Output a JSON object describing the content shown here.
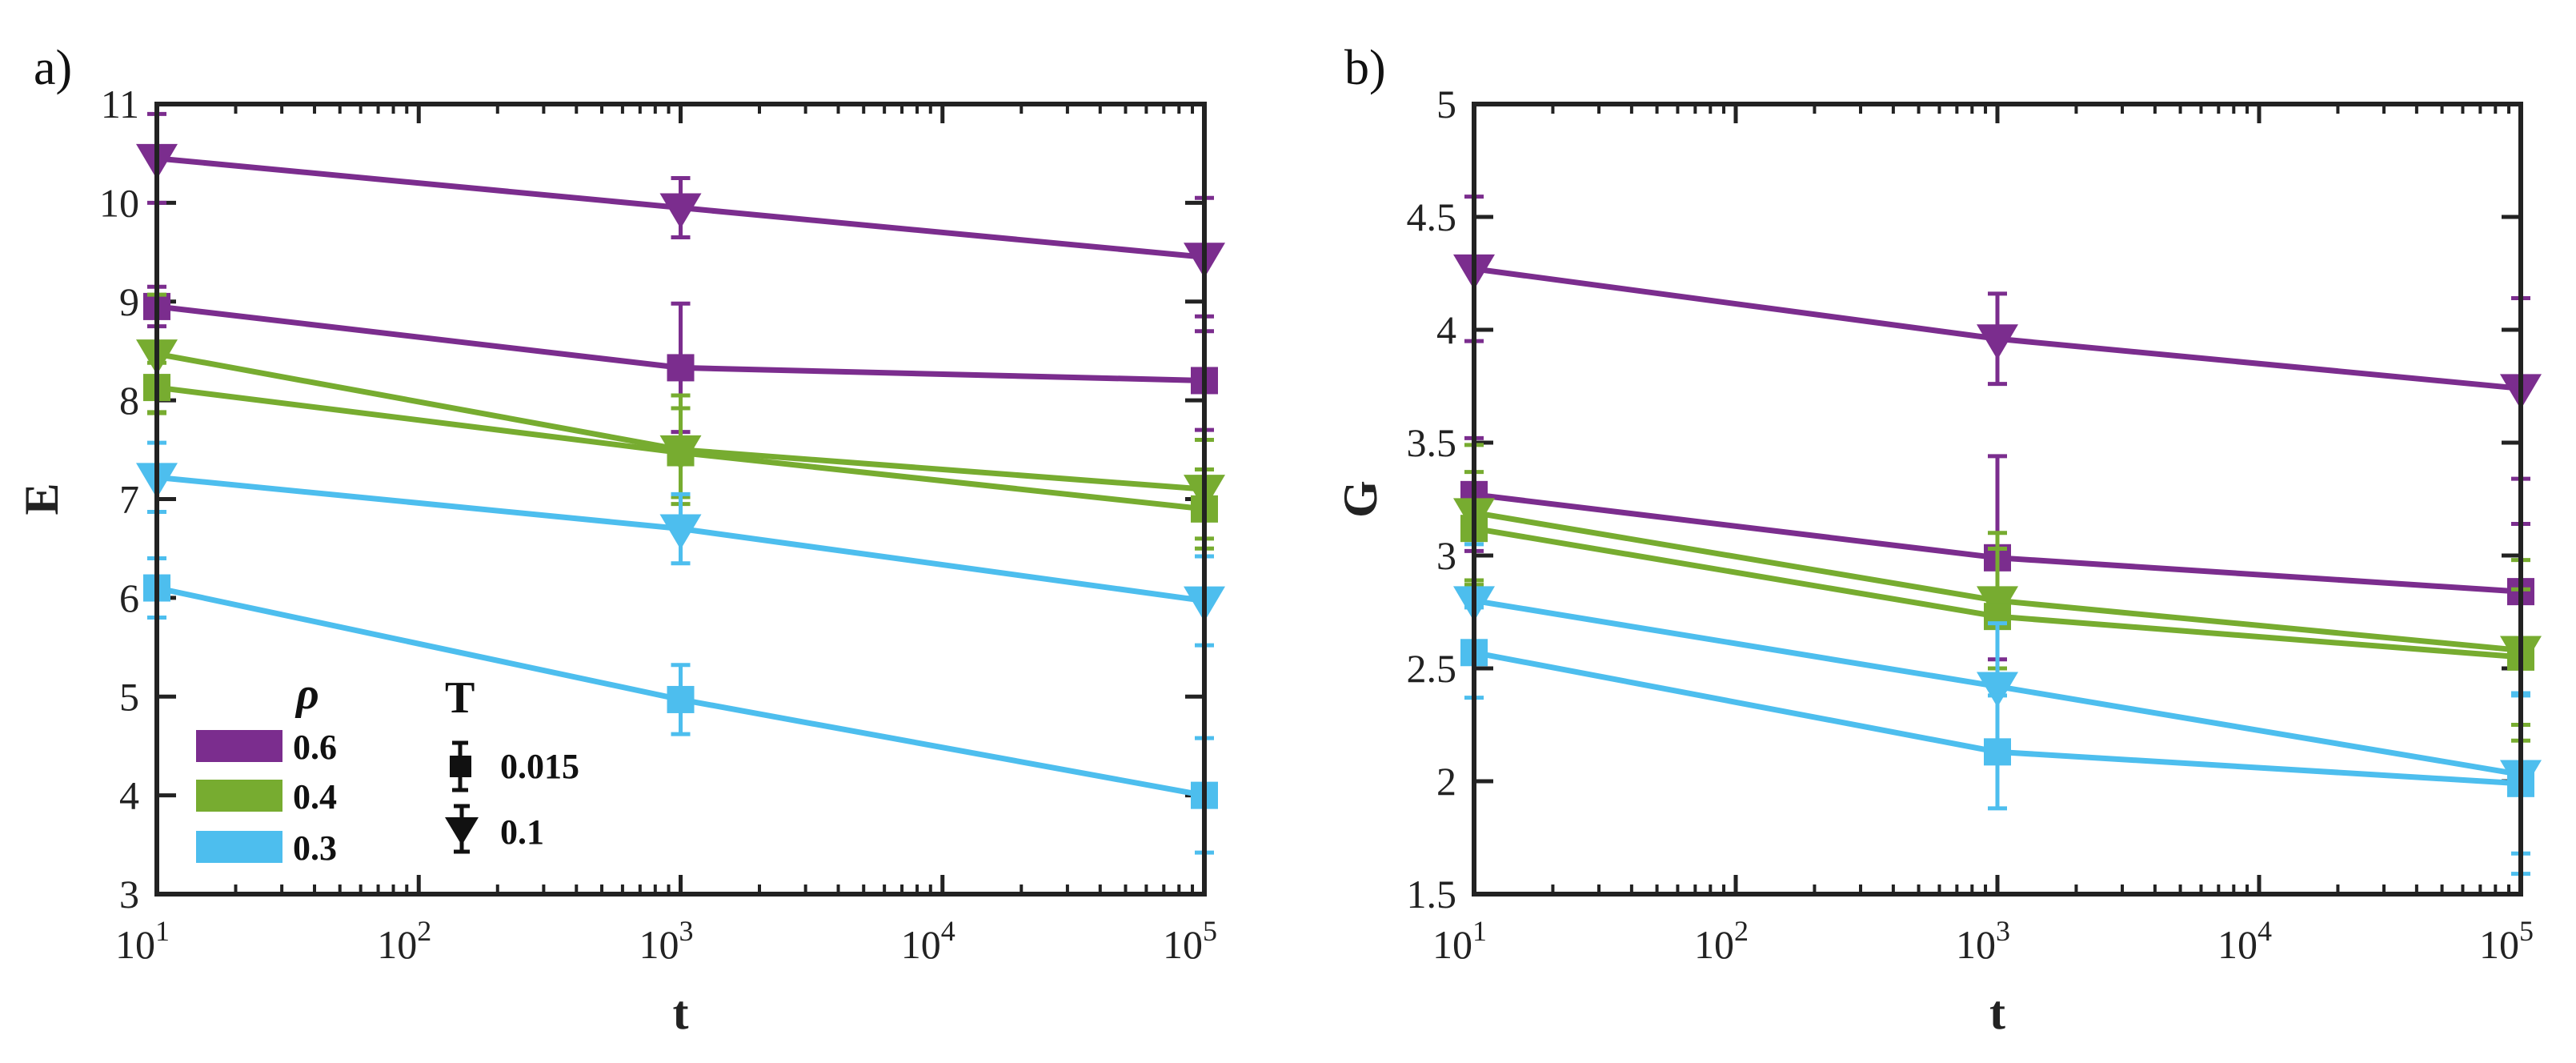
{
  "chart_data": [
    {
      "panel_label": "a)",
      "type": "line",
      "xscale": "log",
      "xlim": [
        10,
        100000
      ],
      "ylim": [
        3,
        11
      ],
      "xlabel": "t",
      "ylabel": "E",
      "x_ticks": [
        {
          "base": "10",
          "exp": "1"
        },
        {
          "base": "10",
          "exp": "2"
        },
        {
          "base": "10",
          "exp": "3"
        },
        {
          "base": "10",
          "exp": "4"
        },
        {
          "base": "10",
          "exp": "5"
        }
      ],
      "y_ticks": [
        "3",
        "4",
        "5",
        "6",
        "7",
        "8",
        "9",
        "10",
        "11"
      ],
      "x": [
        10,
        1000,
        100000
      ],
      "series": [
        {
          "name": "0.6, T=0.1",
          "rho": "0.6",
          "T": "0.1",
          "color": "#7B2D8E",
          "marker": "triangle-down",
          "values": [
            10.45,
            9.95,
            9.45
          ],
          "errors": [
            0.45,
            0.3,
            0.6
          ]
        },
        {
          "name": "0.6, T=0.015",
          "rho": "0.6",
          "T": "0.015",
          "color": "#7B2D8E",
          "marker": "square",
          "values": [
            8.95,
            8.33,
            8.2
          ],
          "errors": [
            0.2,
            0.65,
            0.5
          ]
        },
        {
          "name": "0.4, T=0.1",
          "rho": "0.4",
          "T": "0.1",
          "color": "#77AC30",
          "marker": "triangle-down",
          "values": [
            8.47,
            7.5,
            7.1
          ],
          "errors": [
            0.6,
            0.55,
            0.5
          ]
        },
        {
          "name": "0.4, T=0.015",
          "rho": "0.4",
          "T": "0.015",
          "color": "#77AC30",
          "marker": "square",
          "values": [
            8.13,
            7.47,
            6.9
          ],
          "errors": [
            0.25,
            0.45,
            0.4
          ]
        },
        {
          "name": "0.3, T=0.1",
          "rho": "0.3",
          "T": "0.1",
          "color": "#4DBEEE",
          "marker": "triangle-down",
          "values": [
            7.22,
            6.7,
            5.97
          ],
          "errors": [
            0.35,
            0.35,
            0.45
          ]
        },
        {
          "name": "0.3, T=0.015",
          "rho": "0.3",
          "T": "0.015",
          "color": "#4DBEEE",
          "marker": "square",
          "values": [
            6.1,
            4.97,
            4.0
          ],
          "errors": [
            0.3,
            0.35,
            0.58
          ]
        }
      ],
      "legend": {
        "rho_title": "ρ",
        "rho_entries": [
          {
            "label": "0.6",
            "color": "#7B2D8E"
          },
          {
            "label": "0.4",
            "color": "#77AC30"
          },
          {
            "label": "0.3",
            "color": "#4DBEEE"
          }
        ],
        "t_title": "T",
        "t_entries": [
          {
            "label": "0.015",
            "marker": "square"
          },
          {
            "label": "0.1",
            "marker": "triangle-down"
          }
        ]
      }
    },
    {
      "panel_label": "b)",
      "type": "line",
      "xscale": "log",
      "xlim": [
        10,
        100000
      ],
      "ylim": [
        1.5,
        5
      ],
      "xlabel": "t",
      "ylabel": "G",
      "x_ticks": [
        {
          "base": "10",
          "exp": "1"
        },
        {
          "base": "10",
          "exp": "2"
        },
        {
          "base": "10",
          "exp": "3"
        },
        {
          "base": "10",
          "exp": "4"
        },
        {
          "base": "10",
          "exp": "5"
        }
      ],
      "y_ticks": [
        "1.5",
        "2",
        "2.5",
        "3",
        "3.5",
        "4",
        "4.5",
        "5"
      ],
      "x": [
        10,
        1000,
        100000
      ],
      "series": [
        {
          "name": "0.6, T=0.1",
          "rho": "0.6",
          "T": "0.1",
          "color": "#7B2D8E",
          "marker": "triangle-down",
          "values": [
            4.27,
            3.96,
            3.74
          ],
          "errors": [
            0.32,
            0.2,
            0.4
          ]
        },
        {
          "name": "0.6, T=0.015",
          "rho": "0.6",
          "T": "0.015",
          "color": "#7B2D8E",
          "marker": "square",
          "values": [
            3.27,
            2.99,
            2.84
          ],
          "errors": [
            0.25,
            0.45,
            0.3
          ]
        },
        {
          "name": "0.4, T=0.1",
          "rho": "0.4",
          "T": "0.1",
          "color": "#77AC30",
          "marker": "triangle-down",
          "values": [
            3.19,
            2.8,
            2.58
          ],
          "errors": [
            0.3,
            0.3,
            0.4
          ]
        },
        {
          "name": "0.4, T=0.015",
          "rho": "0.4",
          "T": "0.015",
          "color": "#77AC30",
          "marker": "square",
          "values": [
            3.12,
            2.73,
            2.55
          ],
          "errors": [
            0.25,
            0.3,
            0.3
          ]
        },
        {
          "name": "0.3, T=0.1",
          "rho": "0.3",
          "T": "0.1",
          "color": "#4DBEEE",
          "marker": "triangle-down",
          "values": [
            2.8,
            2.42,
            2.03
          ],
          "errors": [
            0.25,
            0.28,
            0.35
          ]
        },
        {
          "name": "0.3, T=0.015",
          "rho": "0.3",
          "T": "0.015",
          "color": "#4DBEEE",
          "marker": "square",
          "values": [
            2.57,
            2.13,
            1.99
          ],
          "errors": [
            0.2,
            0.25,
            0.4
          ]
        }
      ]
    }
  ]
}
